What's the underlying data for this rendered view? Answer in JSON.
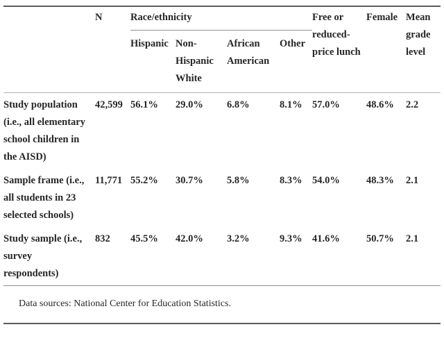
{
  "table": {
    "header": {
      "row_label": "",
      "n": "N",
      "race_group": "Race/ethnicity",
      "race_subcolumns": [
        "Hispanic",
        "Non-Hispanic White",
        "African American",
        "Other"
      ],
      "lunch": "Free or reduced-price lunch",
      "female": "Female",
      "grade": "Mean grade level"
    },
    "rows": [
      {
        "label": "Study population (i.e., all elementary school children in the AISD)",
        "values": [
          "42,599",
          "56.1%",
          "29.0%",
          "6.8%",
          "8.1%",
          "57.0%",
          "48.6%",
          "2.2"
        ]
      },
      {
        "label": "Sample frame (i.e., all students in 23 selected schools)",
        "values": [
          "11,771",
          "55.2%",
          "30.7%",
          "5.8%",
          "8.3%",
          "54.0%",
          "48.3%",
          "2.1"
        ]
      },
      {
        "label": "Study sample (i.e., survey respondents)",
        "values": [
          "832",
          "45.5%",
          "42.0%",
          "3.2%",
          "9.3%",
          "41.6%",
          "50.7%",
          "2.1"
        ]
      }
    ],
    "footnote": "Data sources: National Center for Education Statistics."
  },
  "colors": {
    "text": "#262626",
    "rule_heavy": "#5a5a5a",
    "rule_light": "#b3b3b3",
    "rule_medium": "#8c8c8c",
    "background": "#ffffff"
  }
}
